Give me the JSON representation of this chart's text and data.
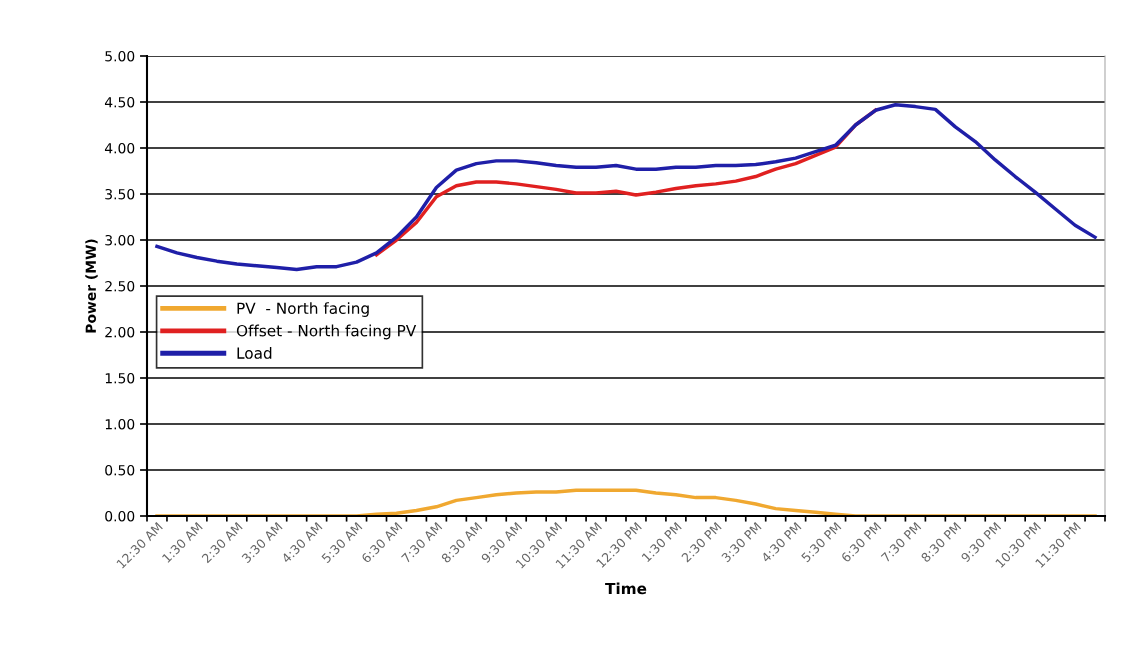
{
  "chart_data": {
    "type": "line",
    "xlabel": "Time",
    "ylabel": "Power (MW)",
    "categories": [
      "12:30 AM",
      null,
      "1:30 AM",
      null,
      "2:30 AM",
      null,
      "3:30 AM",
      null,
      "4:30 AM",
      null,
      "5:30 AM",
      null,
      "6:30 AM",
      null,
      "7:30 AM",
      null,
      "8:30 AM",
      null,
      "9:30 AM",
      null,
      "10:30 AM",
      null,
      "11:30 AM",
      null,
      "12:30 PM",
      null,
      "1:30 PM",
      null,
      "2:30 PM",
      null,
      "3:30 PM",
      null,
      "4:30 PM",
      null,
      "5:30 PM",
      null,
      "6:30 PM",
      null,
      "7:30 PM",
      null,
      "8:30 PM",
      null,
      "9:30 PM",
      null,
      "10:30 PM",
      null,
      "11:30 PM",
      null
    ],
    "series": [
      {
        "name": "PV  - North facing",
        "color": "#f0a830",
        "values": [
          0,
          0,
          0,
          0,
          0,
          0,
          0,
          0,
          0,
          0,
          0,
          0.02,
          0.03,
          0.06,
          0.1,
          0.17,
          0.2,
          0.23,
          0.25,
          0.26,
          0.26,
          0.28,
          0.28,
          0.28,
          0.28,
          0.25,
          0.23,
          0.2,
          0.2,
          0.17,
          0.13,
          0.08,
          0.06,
          0.04,
          0.02,
          0,
          0,
          0,
          0,
          0,
          0,
          0,
          0,
          0,
          0,
          0,
          0,
          0
        ]
      },
      {
        "name": "Offset - North facing PV",
        "color": "#e02020",
        "values": [
          null,
          null,
          null,
          null,
          null,
          null,
          null,
          null,
          null,
          null,
          null,
          2.84,
          3.0,
          3.19,
          3.47,
          3.59,
          3.63,
          3.63,
          3.61,
          3.58,
          3.55,
          3.51,
          3.51,
          3.53,
          3.49,
          3.52,
          3.56,
          3.59,
          3.61,
          3.64,
          3.69,
          3.77,
          3.83,
          3.92,
          4.01,
          4.25,
          4.41,
          null,
          null,
          null,
          null,
          null,
          null,
          null,
          null,
          null,
          null,
          null
        ]
      },
      {
        "name": "Load",
        "color": "#1f1fa8",
        "values": [
          2.93,
          2.86,
          2.81,
          2.77,
          2.74,
          2.72,
          2.7,
          2.68,
          2.71,
          2.71,
          2.76,
          2.86,
          3.03,
          3.25,
          3.57,
          3.76,
          3.83,
          3.86,
          3.86,
          3.84,
          3.81,
          3.79,
          3.79,
          3.81,
          3.77,
          3.77,
          3.79,
          3.79,
          3.81,
          3.81,
          3.82,
          3.85,
          3.89,
          3.96,
          4.03,
          4.25,
          4.41,
          4.47,
          4.45,
          4.42,
          4.23,
          4.07,
          3.87,
          3.69,
          3.52,
          3.34,
          3.16,
          3.03
        ]
      }
    ],
    "ylim": [
      0,
      5
    ],
    "yticks": [
      {
        "value": 0,
        "label": "0.00"
      },
      {
        "value": 0.5,
        "label": "0.50"
      },
      {
        "value": 1,
        "label": "1.00"
      },
      {
        "value": 1.5,
        "label": "1.50"
      },
      {
        "value": 2,
        "label": "2.00"
      },
      {
        "value": 2.5,
        "label": "2.50"
      },
      {
        "value": 3,
        "label": "3.00"
      },
      {
        "value": 3.5,
        "label": "3.50"
      },
      {
        "value": 4,
        "label": "4.00"
      },
      {
        "value": 4.5,
        "label": "4.50"
      },
      {
        "value": 5,
        "label": "5.00"
      }
    ],
    "grid": "y",
    "legend": "left",
    "marker": "none",
    "line_style": "solid"
  }
}
